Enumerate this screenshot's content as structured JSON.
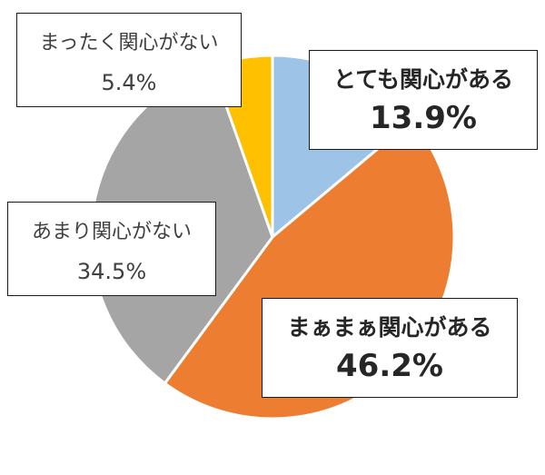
{
  "chart_data": {
    "type": "pie",
    "title": "",
    "categories": [
      "とても関心がある",
      "まぁまぁ関心がある",
      "あまり関心がない",
      "まったく関心がない"
    ],
    "values": [
      13.9,
      46.2,
      34.5,
      5.4
    ],
    "value_labels": [
      "13.9%",
      "46.2%",
      "34.5%",
      "5.4%"
    ],
    "colors": [
      "#9DC3E6",
      "#ED7D31",
      "#A5A5A5",
      "#FFC000"
    ],
    "start": "12 o'clock",
    "direction": "clockwise",
    "legend": "none"
  }
}
